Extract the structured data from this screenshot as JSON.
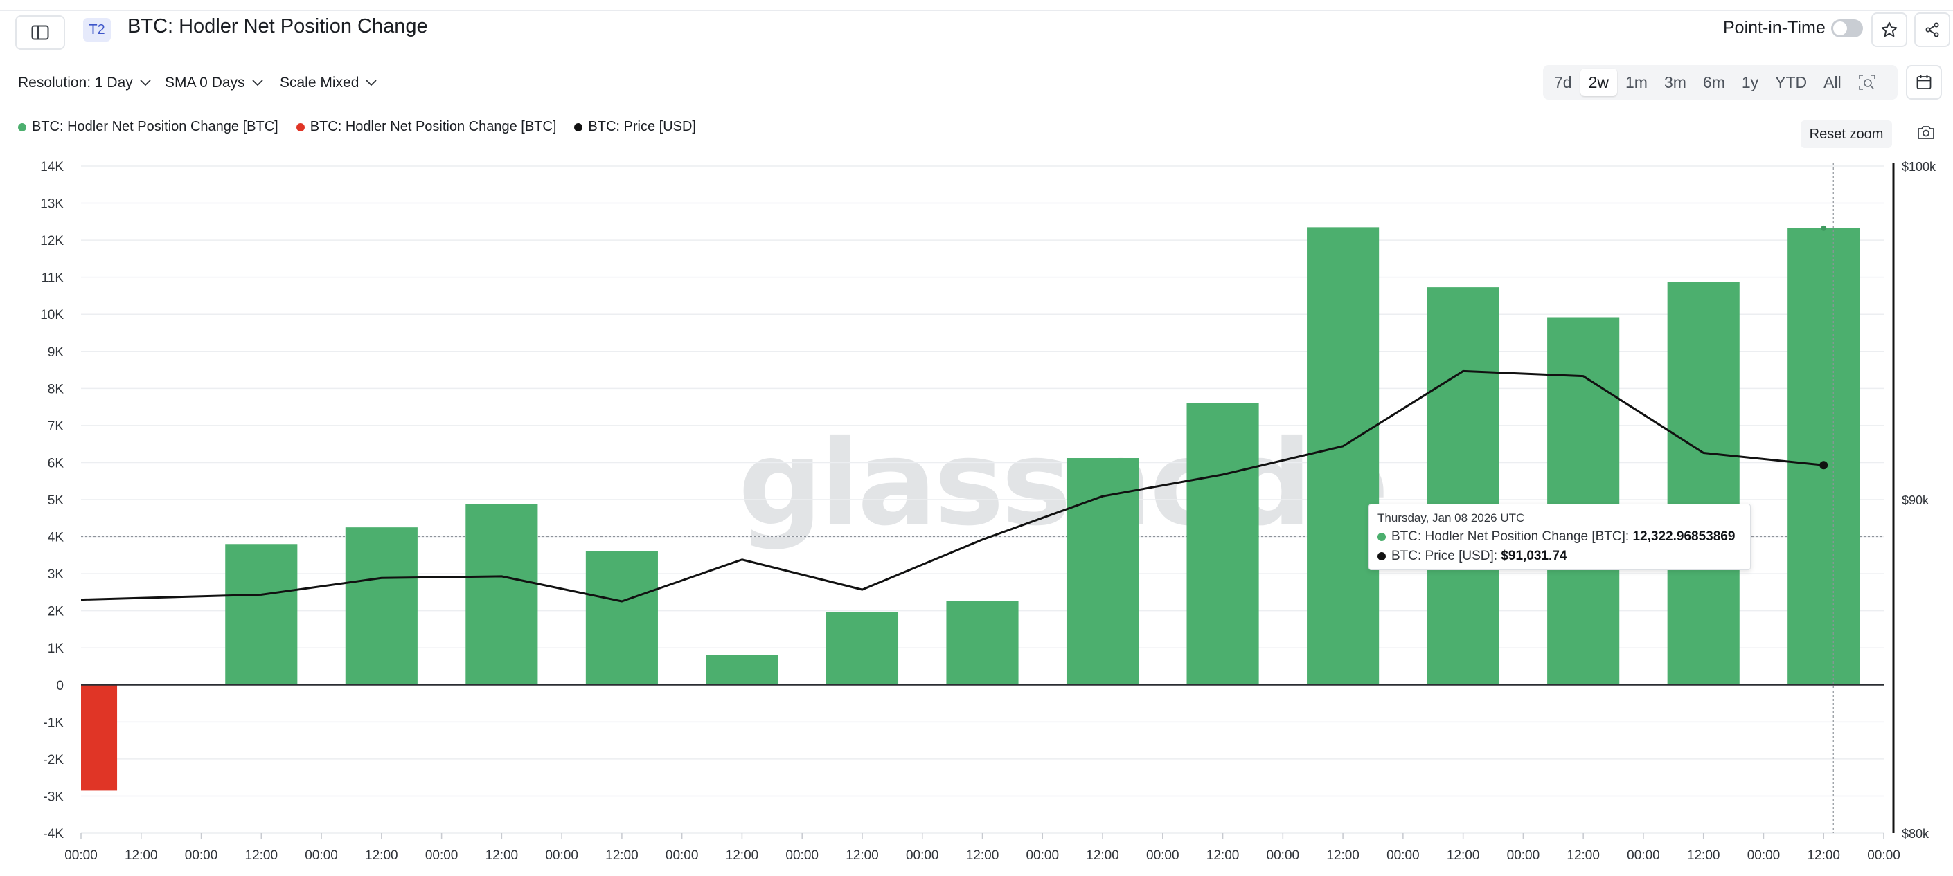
{
  "header": {
    "tier_badge": "T2",
    "title": "BTC: Hodler Net Position Change",
    "point_in_time_label": "Point-in-Time",
    "point_in_time_enabled": false
  },
  "toolbar": {
    "resolution": "Resolution: 1 Day",
    "sma": "SMA 0 Days",
    "scale": "Scale Mixed",
    "ranges": [
      "7d",
      "2w",
      "1m",
      "3m",
      "6m",
      "1y",
      "YTD",
      "All"
    ],
    "active_range": "2w"
  },
  "legend": [
    {
      "label": "BTC: Hodler Net Position Change [BTC]",
      "color": "#4caf6e"
    },
    {
      "label": "BTC: Hodler Net Position Change [BTC]",
      "color": "#e03526"
    },
    {
      "label": "BTC: Price [USD]",
      "color": "#111111"
    }
  ],
  "reset_zoom": "Reset zoom",
  "watermark": "glassnode",
  "tooltip": {
    "date": "Thursday, Jan 08 2026 UTC",
    "rows": [
      {
        "label": "BTC: Hodler Net Position Change [BTC]: ",
        "value": "12,322.96853869",
        "color": "#4caf6e"
      },
      {
        "label": "BTC: Price [USD]: ",
        "value": "$91,031.74",
        "color": "#111111"
      }
    ]
  },
  "chart_data": {
    "type": "bar",
    "title": "BTC: Hodler Net Position Change",
    "x_ticks": [
      "00:00",
      "12:00",
      "00:00",
      "12:00",
      "00:00",
      "12:00",
      "00:00",
      "12:00",
      "00:00",
      "12:00",
      "00:00",
      "12:00",
      "00:00",
      "12:00",
      "00:00",
      "12:00",
      "00:00",
      "12:00",
      "00:00",
      "12:00",
      "00:00",
      "12:00",
      "00:00",
      "12:00",
      "00:00",
      "12:00",
      "00:00",
      "12:00",
      "00:00",
      "12:00",
      "00:00"
    ],
    "y_left": {
      "ticks": [
        "14K",
        "13K",
        "12K",
        "11K",
        "10K",
        "9K",
        "8K",
        "7K",
        "6K",
        "5K",
        "4K",
        "3K",
        "2K",
        "1K",
        "0",
        "-1K",
        "-2K",
        "-3K",
        "-4K"
      ],
      "ylim": [
        -4000,
        14000
      ]
    },
    "y_right": {
      "ticks": [
        "$100k",
        "$90k",
        "$80k"
      ],
      "ylim": [
        80000,
        100000
      ]
    },
    "series": [
      {
        "name": "BTC: Hodler Net Position Change [BTC]",
        "kind": "bar",
        "x_day": [
          0,
          1,
          2,
          3,
          4,
          5,
          6,
          7,
          8,
          9,
          10,
          11,
          12,
          13,
          14
        ],
        "values": [
          -2850,
          3800,
          4250,
          4870,
          3600,
          800,
          1970,
          2270,
          6120,
          7600,
          12350,
          10730,
          9920,
          10880,
          12322.97
        ]
      },
      {
        "name": "BTC: Price [USD]",
        "kind": "line",
        "x_day": [
          0,
          1,
          2,
          3,
          4,
          5,
          6,
          7,
          8,
          9,
          10,
          11,
          12,
          13,
          14
        ],
        "values": [
          87000,
          87150,
          87650,
          87700,
          86950,
          88200,
          87300,
          88800,
          90100,
          90750,
          91600,
          93850,
          93700,
          91400,
          91031.74
        ]
      }
    ],
    "zero_line": true,
    "crosshair_y": 4000,
    "legend_position": "top-left"
  }
}
